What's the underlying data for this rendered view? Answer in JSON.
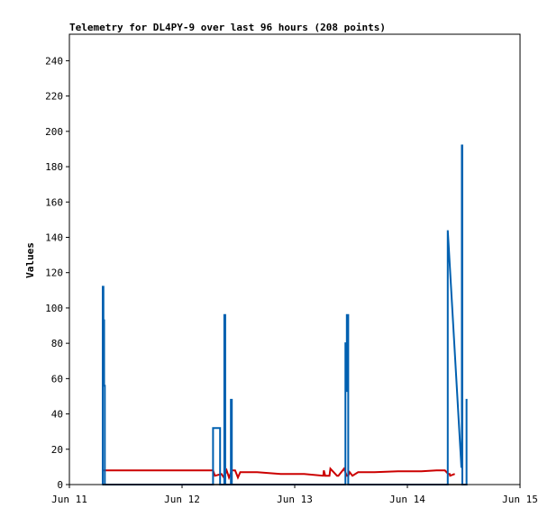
{
  "chart_data": {
    "type": "line",
    "title": "Telemetry for DL4PY-9 over last 96 hours (208 points)",
    "xlabel": "",
    "ylabel": "Values",
    "xlim": [
      0,
      96
    ],
    "ylim": [
      0,
      255
    ],
    "x_ticks": [
      {
        "value": 0,
        "label": "Jun 11"
      },
      {
        "value": 24,
        "label": "Jun 12"
      },
      {
        "value": 48,
        "label": "Jun 13"
      },
      {
        "value": 72,
        "label": "Jun 14"
      },
      {
        "value": 96,
        "label": "Jun 15"
      }
    ],
    "y_ticks": [
      0,
      20,
      40,
      60,
      80,
      100,
      120,
      140,
      160,
      180,
      200,
      220,
      240
    ],
    "grid": false,
    "series": [
      {
        "color": "#cc0000",
        "x": [
          7.1,
          30.6,
          31.0,
          32.4,
          32.9,
          33.5,
          34.0,
          34.6,
          35.3,
          35.9,
          36.4,
          40.0,
          45.0,
          50.0,
          54.1,
          54.2,
          54.5,
          55.4,
          55.6,
          57.0,
          57.3,
          58.5,
          59.1,
          59.4,
          59.7,
          60.3,
          61.5,
          65.0,
          70.0,
          75.0,
          78.2,
          80.0,
          80.7,
          81.0,
          81.1,
          82.1
        ],
        "y": [
          8,
          8,
          5,
          6,
          4,
          8,
          4,
          8,
          8,
          4,
          7,
          7,
          6,
          6,
          5,
          8,
          5,
          5,
          9,
          5,
          5,
          9,
          5,
          5,
          7,
          5,
          7,
          7,
          7.5,
          7.5,
          8,
          8,
          6,
          6,
          5,
          6
        ]
      },
      {
        "color": "#0060b0",
        "x": [
          7.0,
          7.1,
          7.1,
          7.25,
          7.25,
          7.4,
          7.4,
          7.55,
          7.55,
          30.6,
          30.6,
          32.1,
          32.1,
          33.0,
          33.0,
          33.2,
          33.2,
          34.4,
          34.4,
          34.6,
          34.6,
          58.8,
          58.8,
          59.0,
          59.0,
          59.1,
          59.1,
          59.4,
          59.4,
          80.6,
          80.6,
          80.8,
          83.5,
          83.6,
          83.6,
          83.7,
          83.7,
          84.6,
          84.6,
          84.8
        ],
        "y": [
          0,
          0,
          112,
          112,
          93,
          93,
          56,
          56,
          0,
          0,
          32,
          32,
          0,
          0,
          96,
          96,
          0,
          0,
          48,
          48,
          0,
          0,
          80,
          80,
          53,
          53,
          96,
          96,
          0,
          0,
          144,
          135,
          10,
          10,
          192,
          192,
          0,
          0,
          48,
          48
        ]
      },
      {
        "color": "#000000",
        "x": [
          7.0,
          84.8
        ],
        "y": [
          0,
          0
        ]
      }
    ]
  }
}
